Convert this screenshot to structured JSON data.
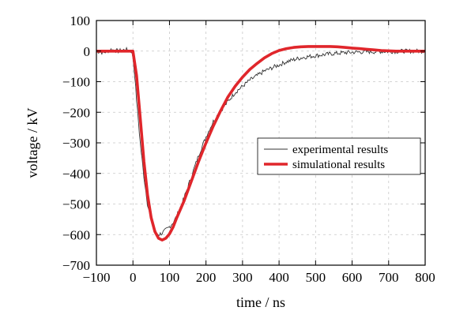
{
  "chart_data": {
    "type": "line",
    "xlabel": "time / ns",
    "ylabel": "voltage / kV",
    "xlim": [
      -100,
      800
    ],
    "ylim": [
      -700,
      100
    ],
    "x_ticks": [
      -100,
      0,
      100,
      200,
      300,
      400,
      500,
      600,
      700,
      800
    ],
    "y_ticks": [
      100,
      0,
      -100,
      -200,
      -300,
      -400,
      -500,
      -600,
      -700
    ],
    "x_tick_labels": [
      "−100",
      "0",
      "100",
      "200",
      "300",
      "400",
      "500",
      "600",
      "700",
      "800"
    ],
    "y_tick_labels": [
      "100",
      "0",
      "−100",
      "−200",
      "−300",
      "−400",
      "−500",
      "−600",
      "−700"
    ],
    "grid": true,
    "legend_position": "right",
    "series": [
      {
        "name": "experimental results",
        "color": "#333333",
        "style": "thin noisy line",
        "x": [
          -100,
          -80,
          -60,
          -40,
          -20,
          -5,
          0,
          5,
          10,
          20,
          30,
          40,
          50,
          60,
          70,
          80,
          90,
          100,
          110,
          120,
          130,
          140,
          150,
          160,
          170,
          180,
          190,
          200,
          220,
          240,
          260,
          280,
          300,
          320,
          340,
          360,
          380,
          400,
          420,
          440,
          460,
          480,
          500,
          520,
          540,
          560,
          580,
          600,
          620,
          640,
          660,
          680,
          700,
          720,
          740,
          760,
          780,
          800
        ],
        "y": [
          0,
          -5,
          5,
          0,
          5,
          0,
          -20,
          -80,
          -160,
          -300,
          -410,
          -500,
          -555,
          -590,
          -600,
          -595,
          -585,
          -575,
          -560,
          -540,
          -510,
          -480,
          -445,
          -410,
          -375,
          -340,
          -310,
          -280,
          -230,
          -195,
          -165,
          -135,
          -115,
          -95,
          -80,
          -65,
          -55,
          -45,
          -35,
          -28,
          -22,
          -18,
          -15,
          -12,
          -9,
          -7,
          -5,
          -4,
          -3,
          -2,
          -2,
          -1,
          -1,
          -1,
          0,
          0,
          0,
          0
        ]
      },
      {
        "name": "simulational results",
        "color": "#e0262b",
        "style": "thick line",
        "x": [
          -100,
          -10,
          0,
          10,
          20,
          30,
          40,
          50,
          60,
          70,
          80,
          90,
          100,
          110,
          120,
          140,
          160,
          180,
          200,
          220,
          240,
          260,
          280,
          300,
          320,
          340,
          360,
          380,
          400,
          420,
          440,
          460,
          480,
          500,
          520,
          540,
          560,
          580,
          600,
          620,
          640,
          660,
          680,
          700,
          720,
          740,
          760,
          780,
          800
        ],
        "y": [
          0,
          0,
          0,
          -80,
          -220,
          -360,
          -470,
          -545,
          -590,
          -612,
          -618,
          -612,
          -598,
          -575,
          -545,
          -490,
          -425,
          -360,
          -300,
          -245,
          -195,
          -150,
          -115,
          -85,
          -60,
          -40,
          -22,
          -8,
          2,
          8,
          12,
          14,
          15,
          15,
          15,
          15,
          14,
          12,
          10,
          8,
          6,
          4,
          2,
          1,
          0,
          0,
          0,
          0,
          0
        ]
      }
    ]
  }
}
